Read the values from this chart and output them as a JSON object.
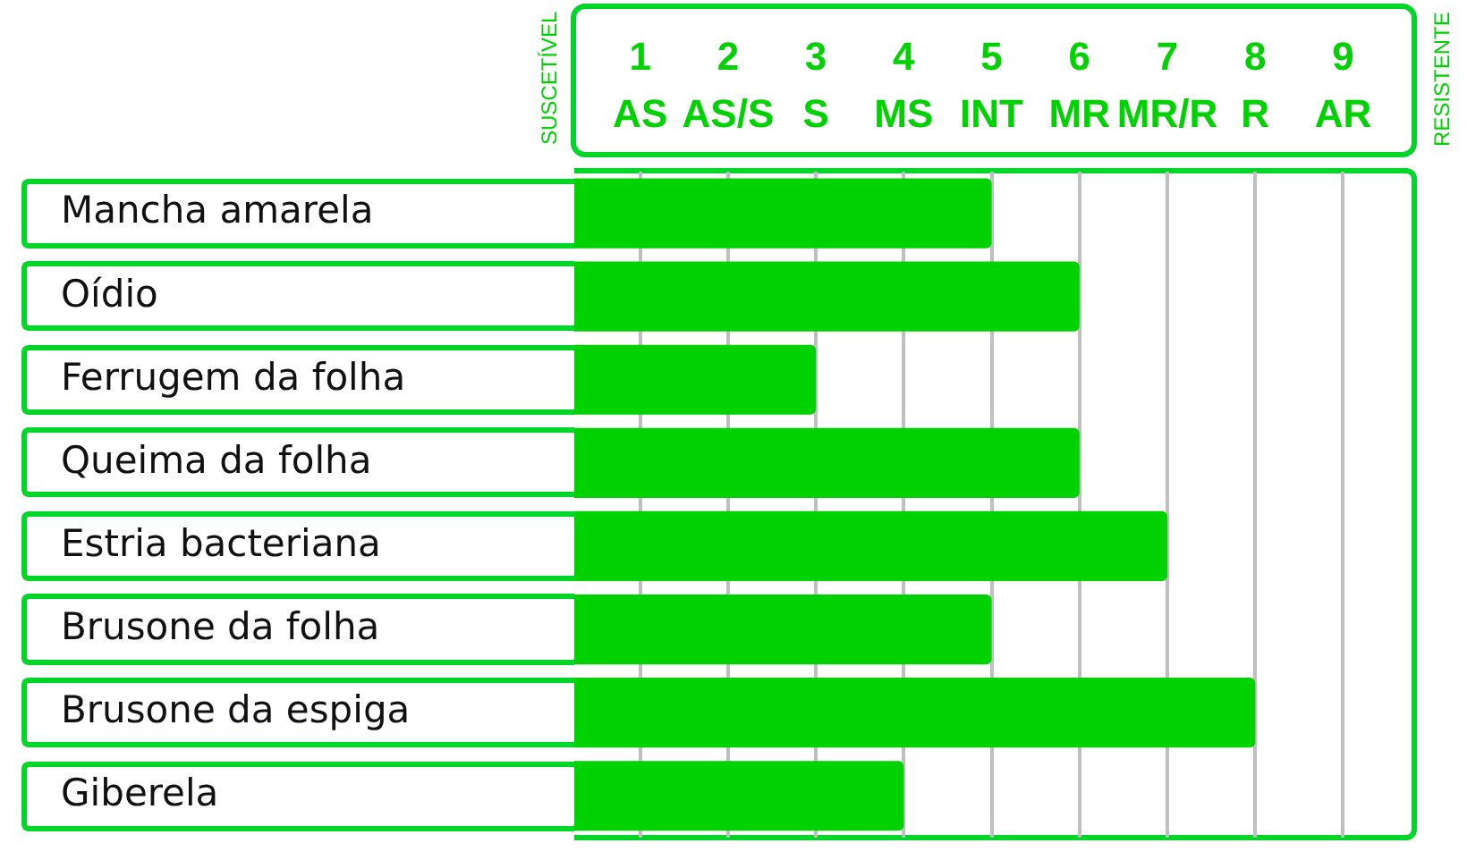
{
  "chart_data": {
    "type": "bar",
    "orientation": "horizontal",
    "categories": [
      "Mancha amarela",
      "Oídio",
      "Ferrugem da folha",
      "Queima da folha",
      "Estria bacteriana",
      "Brusone da folha",
      "Brusone da espiga",
      "Giberela"
    ],
    "values": [
      5,
      6,
      3,
      6,
      7,
      5,
      8,
      4
    ],
    "color": "#00d100",
    "xlim": [
      0.25,
      9.8
    ],
    "xticks": [
      {
        "value": 1,
        "label": "1\nAS"
      },
      {
        "value": 2,
        "label": "2\nAS/S"
      },
      {
        "value": 3,
        "label": "3\nS"
      },
      {
        "value": 4,
        "label": "4\nMS"
      },
      {
        "value": 5,
        "label": "5\nINT"
      },
      {
        "value": 6,
        "label": "6\nMR"
      },
      {
        "value": 7,
        "label": "7\nMR/R"
      },
      {
        "value": 8,
        "label": "8\nR"
      },
      {
        "value": 9,
        "label": "9\nAR"
      }
    ],
    "grid": "x",
    "annotations": [
      "SUSCETÍVEL",
      "RESISTENTE"
    ]
  }
}
